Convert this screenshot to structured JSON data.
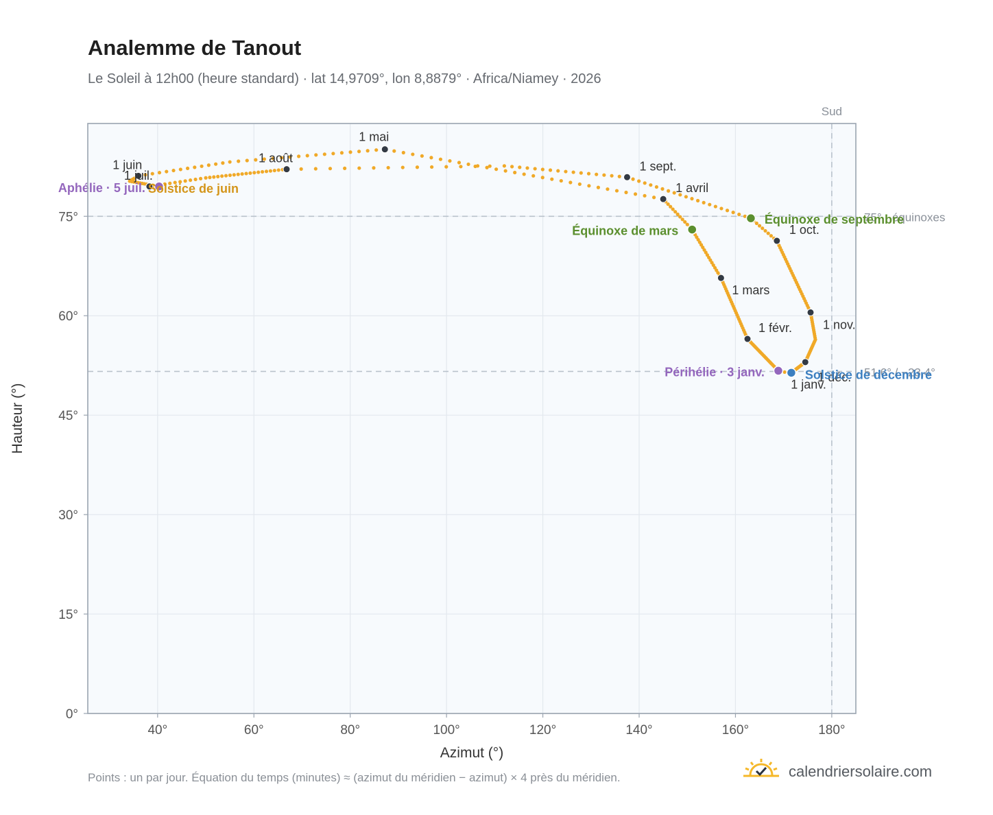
{
  "header": {
    "title": "Analemme de Tanout",
    "subtitle": "Le Soleil à 12h00 (heure standard) · lat 14,9709°, lon 8,8879° · Africa/Niamey · 2026"
  },
  "footer": {
    "note": "Points : un par jour. Équation du temps (minutes) ≈ (azimut du méridien − azimut) × 4 près du méridien.",
    "brand": "calendriersolaire.com",
    "brand_icon": "sun-check-icon"
  },
  "colors": {
    "analemma": "#f0a928",
    "month_marker": "#333a44",
    "equinox": "#5b8f2e",
    "june_solstice": "#d4951a",
    "december_solstice": "#3c7fc0",
    "apsides": "#9467bd",
    "reference_line": "#b9c2cc",
    "plot_background": "#f7fafd"
  },
  "chart_data": {
    "type": "scatter",
    "xlabel": "Azimut (°)",
    "ylabel": "Hauteur (°)",
    "xlim": [
      25.5,
      185
    ],
    "ylim": [
      0,
      89
    ],
    "x_ticks": [
      {
        "value": 40,
        "label": "40°"
      },
      {
        "value": 60,
        "label": "60°"
      },
      {
        "value": 80,
        "label": "80°"
      },
      {
        "value": 100,
        "label": "100°"
      },
      {
        "value": 120,
        "label": "120°"
      },
      {
        "value": 140,
        "label": "140°"
      },
      {
        "value": 160,
        "label": "160°"
      },
      {
        "value": 180,
        "label": "180°"
      }
    ],
    "y_ticks": [
      {
        "value": 0,
        "label": "0°"
      },
      {
        "value": 15,
        "label": "15°"
      },
      {
        "value": 30,
        "label": "30°"
      },
      {
        "value": 45,
        "label": "45°"
      },
      {
        "value": 60,
        "label": "60°"
      },
      {
        "value": 75,
        "label": "75°"
      }
    ],
    "grid": true,
    "reference_lines": [
      {
        "orientation": "vertical",
        "value": 180,
        "label": "Sud"
      },
      {
        "orientation": "horizontal",
        "value": 75,
        "label": "75° · équinoxes"
      },
      {
        "orientation": "horizontal",
        "value": 51.6,
        "label": "51,6° / −23,4°"
      }
    ],
    "key_dates": [
      {
        "date": "1 janv.",
        "azimuth": 171.5,
        "altitude": 51.3
      },
      {
        "date": "1 févr.",
        "azimuth": 162.5,
        "altitude": 56.5
      },
      {
        "date": "1 mars",
        "azimuth": 157.0,
        "altitude": 65.7
      },
      {
        "date": "1 avril",
        "azimuth": 145.0,
        "altitude": 77.6
      },
      {
        "date": "1 mai",
        "azimuth": 87.2,
        "altitude": 85.1
      },
      {
        "date": "1 juin",
        "azimuth": 36.0,
        "altitude": 81.1
      },
      {
        "date": "1 juil.",
        "azimuth": 38.3,
        "altitude": 79.5
      },
      {
        "date": "1 août",
        "azimuth": 66.8,
        "altitude": 82.1
      },
      {
        "date": "1 sept.",
        "azimuth": 137.5,
        "altitude": 80.9
      },
      {
        "date": "1 oct.",
        "azimuth": 168.6,
        "altitude": 71.3
      },
      {
        "date": "1 nov.",
        "azimuth": 175.6,
        "altitude": 60.5
      },
      {
        "date": "1 déc.",
        "azimuth": 174.5,
        "altitude": 53.0
      }
    ],
    "events": [
      {
        "label": "Équinoxe de mars",
        "type": "equinox",
        "azimuth": 151.0,
        "altitude": 73.0
      },
      {
        "label": "Équinoxe de septembre",
        "type": "equinox",
        "azimuth": 163.2,
        "altitude": 74.7
      },
      {
        "label": "Solstice de juin",
        "type": "june_solstice",
        "azimuth": 40.3,
        "altitude": 79.5
      },
      {
        "label": "Solstice de décembre",
        "type": "december_solstice",
        "azimuth": 171.6,
        "altitude": 51.4
      },
      {
        "label": "Aphélie · 5 juil.",
        "type": "apsis",
        "azimuth": 40.3,
        "altitude": 79.5
      },
      {
        "label": "Périhélie · 3 janv.",
        "type": "apsis",
        "azimuth": 168.9,
        "altitude": 51.7
      }
    ]
  }
}
